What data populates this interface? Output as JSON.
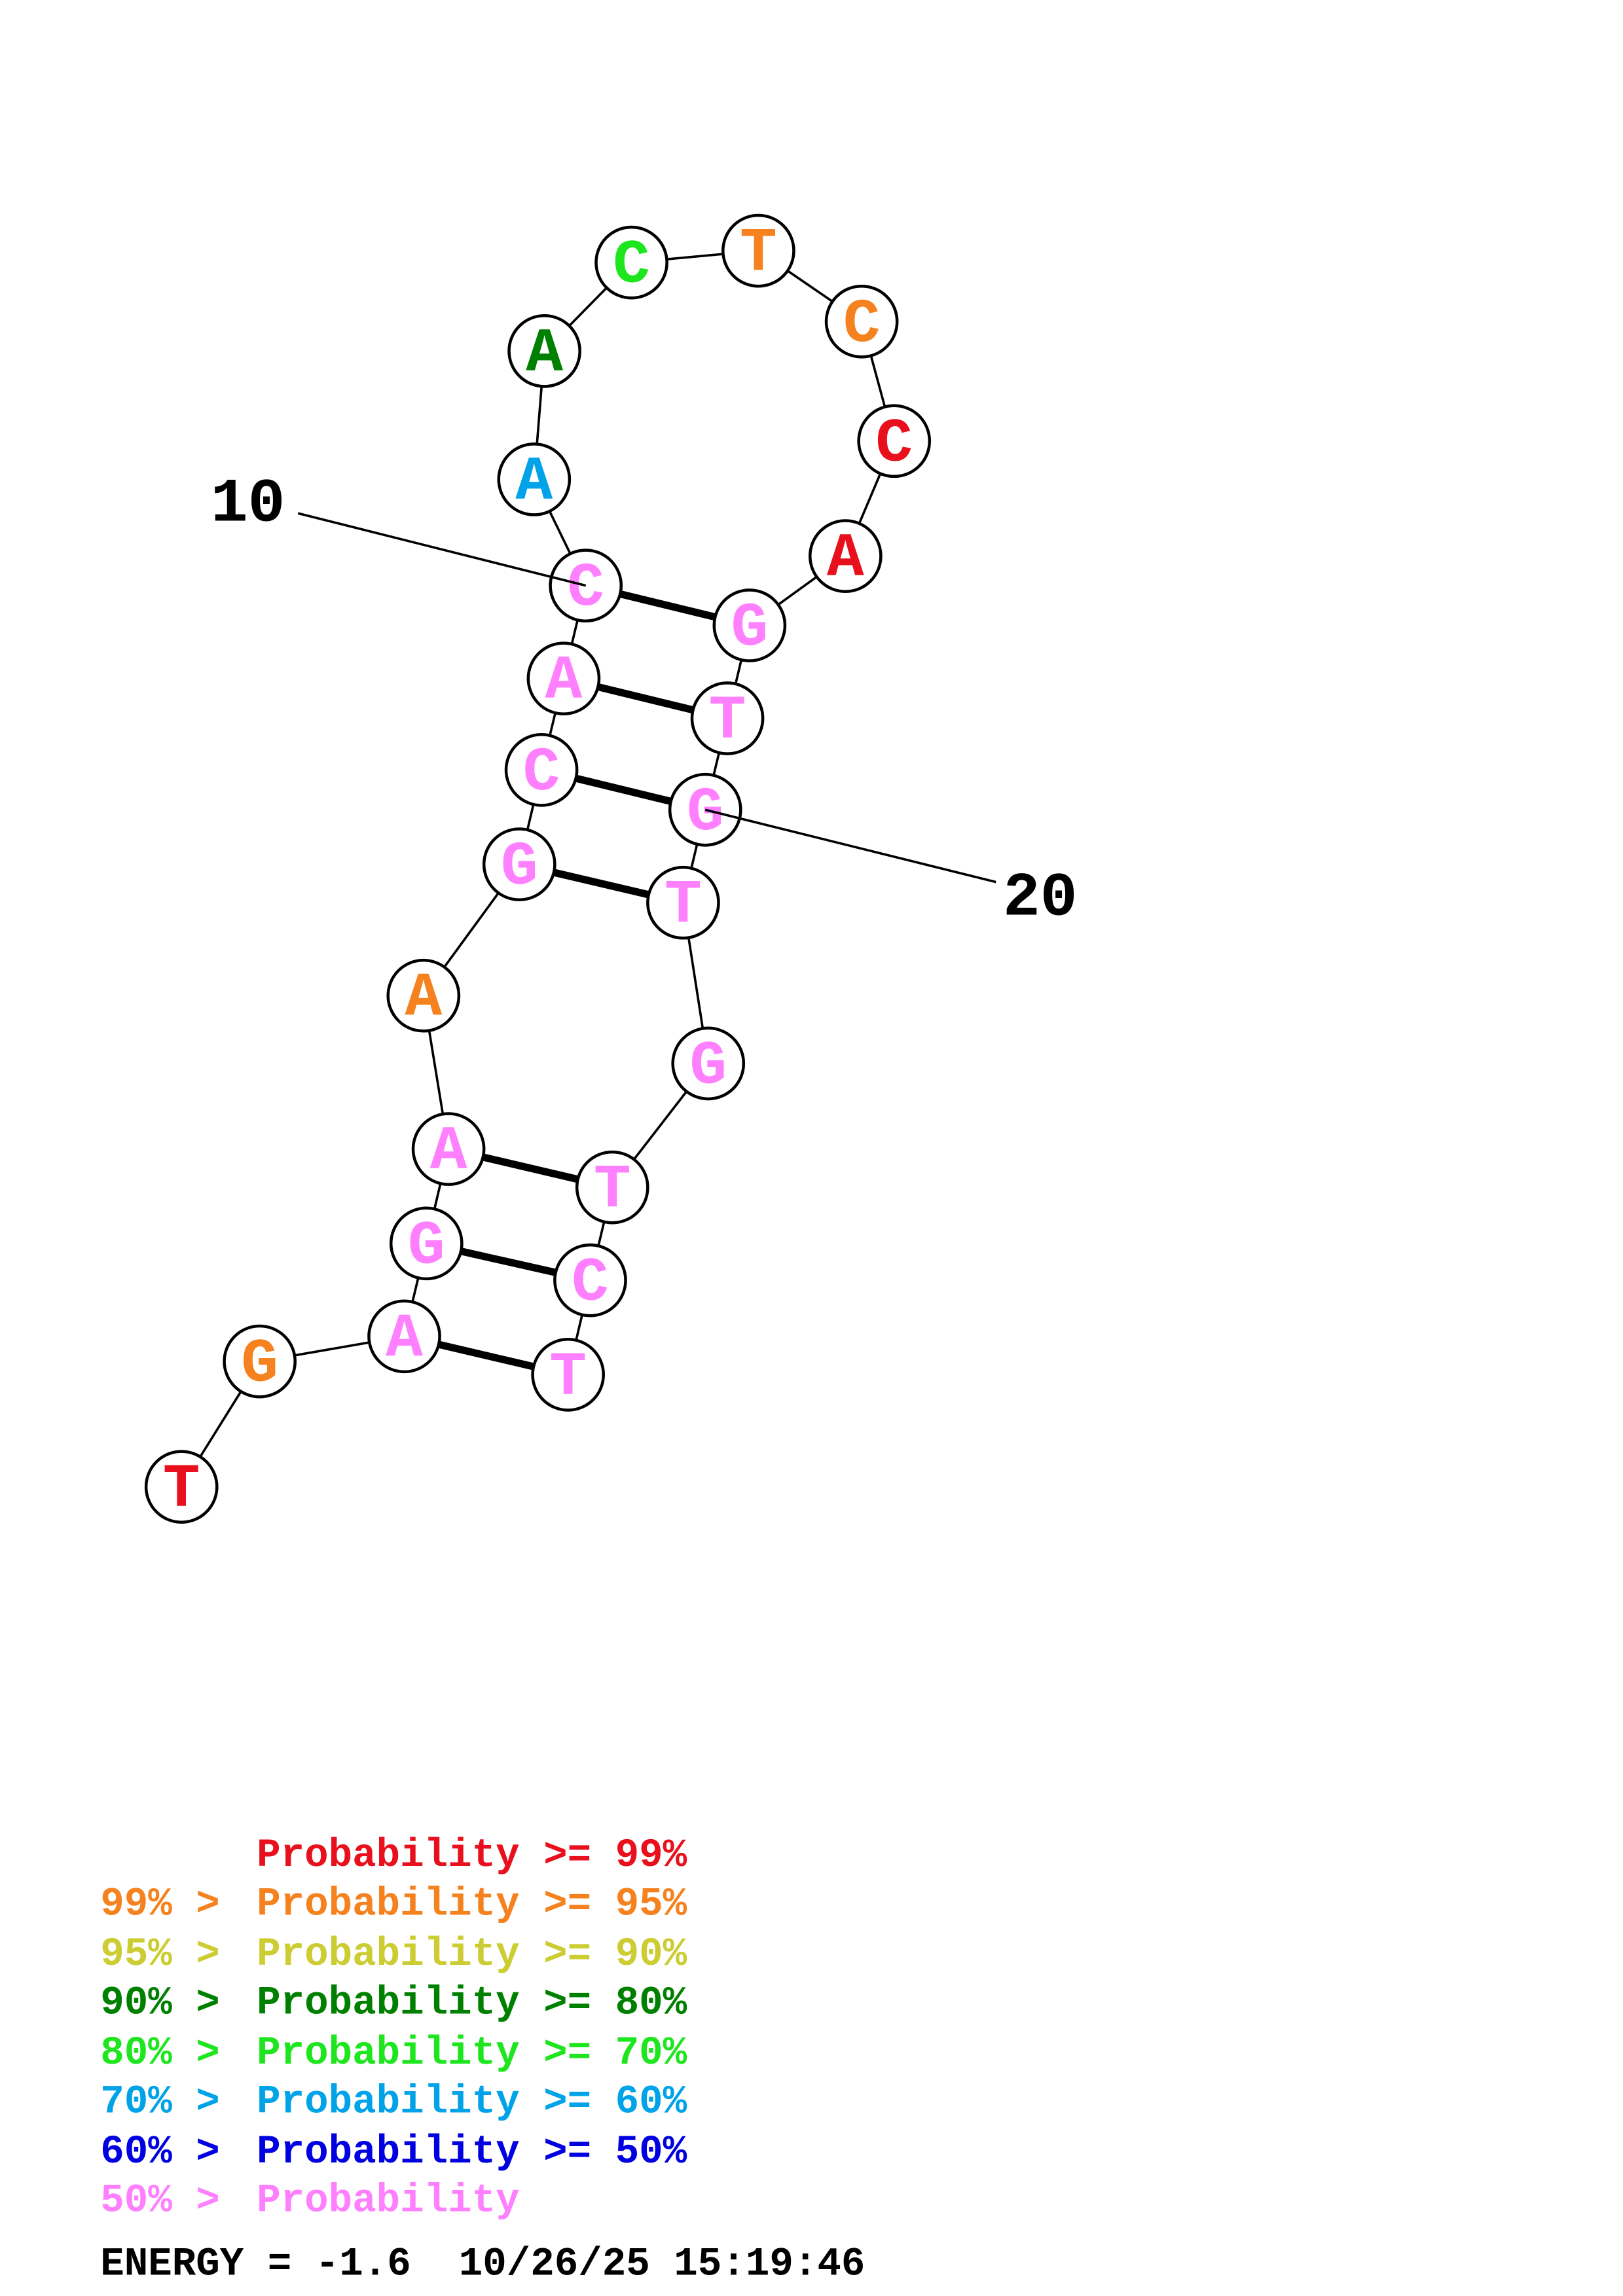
{
  "nodes": [
    {
      "base": "T",
      "color": "#e8101c"
    },
    {
      "base": "G",
      "color": "#f5821f"
    },
    {
      "base": "A",
      "color": "#ff80ff"
    },
    {
      "base": "G",
      "color": "#ff80ff"
    },
    {
      "base": "A",
      "color": "#ff80ff"
    },
    {
      "base": "A",
      "color": "#f5821f"
    },
    {
      "base": "G",
      "color": "#ff80ff"
    },
    {
      "base": "C",
      "color": "#ff80ff"
    },
    {
      "base": "A",
      "color": "#ff80ff"
    },
    {
      "base": "C",
      "color": "#ff80ff"
    },
    {
      "base": "A",
      "color": "#00a2e8"
    },
    {
      "base": "A",
      "color": "#008000"
    },
    {
      "base": "C",
      "color": "#1ee61e"
    },
    {
      "base": "T",
      "color": "#f5821f"
    },
    {
      "base": "C",
      "color": "#f5821f"
    },
    {
      "base": "C",
      "color": "#e8101c"
    },
    {
      "base": "A",
      "color": "#e8101c"
    },
    {
      "base": "G",
      "color": "#ff80ff"
    },
    {
      "base": "T",
      "color": "#ff80ff"
    },
    {
      "base": "G",
      "color": "#ff80ff"
    },
    {
      "base": "T",
      "color": "#ff80ff"
    },
    {
      "base": "G",
      "color": "#ff80ff"
    },
    {
      "base": "T",
      "color": "#ff80ff"
    },
    {
      "base": "C",
      "color": "#ff80ff"
    },
    {
      "base": "T",
      "color": "#ff80ff"
    }
  ],
  "position_labels": [
    "10",
    "20"
  ],
  "legend": [
    {
      "text": "Probability >= 99%",
      "color": "#e8101c"
    },
    {
      "prefix": "99% >",
      "text": "Probability >= 95%",
      "color": "#f5821f"
    },
    {
      "prefix": "95% >",
      "text": "Probability >= 90%",
      "color": "#cccc33"
    },
    {
      "prefix": "90% >",
      "text": "Probability >= 80%",
      "color": "#008000"
    },
    {
      "prefix": "80% >",
      "text": "Probability >= 70%",
      "color": "#1ee61e"
    },
    {
      "prefix": "70% >",
      "text": "Probability >= 60%",
      "color": "#00a2e8"
    },
    {
      "prefix": "60% >",
      "text": "Probability >= 50%",
      "color": "#0000e0"
    },
    {
      "prefix": "50% >",
      "text": "Probability",
      "color": "#ff80ff"
    }
  ],
  "footer": "ENERGY = -1.6  10/26/25 15:19:46"
}
